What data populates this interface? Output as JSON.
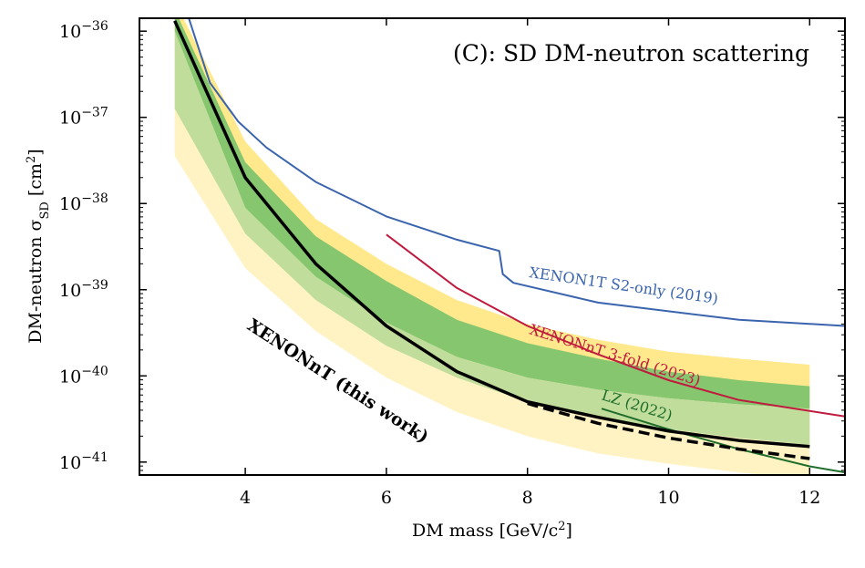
{
  "chart_data": {
    "type": "line",
    "title": "(C): SD DM-neutron scattering",
    "xlabel": {
      "main": "DM mass [GeV/c",
      "sup": "2",
      "end": "]"
    },
    "ylabel": {
      "main": "DM-neutron σ",
      "sub": "SD",
      "unit": " [cm",
      "sup": "2",
      "end": "]"
    },
    "xlim": [
      2.5,
      12.5
    ],
    "ylim_log10": [
      -41.15,
      -35.85
    ],
    "xscale": "linear",
    "yscale": "log",
    "xticks": [
      4,
      6,
      8,
      10,
      12
    ],
    "xtick_labels": [
      "4",
      "6",
      "8",
      "10",
      "12"
    ],
    "yticks_log10": [
      -36,
      -37,
      -38,
      -39,
      -40,
      -41
    ],
    "ytick_labels": [
      {
        "base": "10",
        "exp": "−36"
      },
      {
        "base": "10",
        "exp": "−37"
      },
      {
        "base": "10",
        "exp": "−38"
      },
      {
        "base": "10",
        "exp": "−39"
      },
      {
        "base": "10",
        "exp": "−40"
      },
      {
        "base": "10",
        "exp": "−41"
      }
    ],
    "colors": {
      "band2": "#fff3c4",
      "band2_alt": "#ffe98c",
      "band1": "#c0dd9c",
      "band1_alt": "#86c66f",
      "xenon1t": "#3a64ad",
      "xenonnt3fold": "#c01a3e",
      "lz": "#1f6d2b",
      "this_work": "#000000"
    },
    "bands": {
      "x": [
        3,
        4,
        5,
        6,
        7,
        8,
        9,
        10,
        11,
        12
      ],
      "outer_upper": [
        -35.65,
        -37.28,
        -38.18,
        -38.7,
        -39.12,
        -39.4,
        -39.58,
        -39.72,
        -39.8,
        -39.87
      ],
      "inner_upper": [
        -35.75,
        -37.52,
        -38.38,
        -38.9,
        -39.35,
        -39.62,
        -39.8,
        -39.95,
        -40.05,
        -40.12
      ],
      "median": [
        -36.0,
        -38.05,
        -38.85,
        -39.38,
        -39.78,
        -40.02,
        -40.16,
        -40.26,
        -40.33,
        -40.38
      ],
      "inner_lower": [
        -36.9,
        -38.35,
        -39.12,
        -39.65,
        -40.02,
        -40.3,
        -40.48,
        -40.62,
        -40.72,
        -40.8
      ],
      "outer_lower": [
        -37.45,
        -38.75,
        -39.48,
        -40.02,
        -40.42,
        -40.7,
        -40.9,
        -41.02,
        -41.12,
        -41.2
      ]
    },
    "series": [
      {
        "name": "XENONnT (this work)",
        "color": "#000000",
        "style": "solid",
        "x": [
          3,
          4,
          5,
          6,
          7,
          8,
          9,
          10,
          11,
          12
        ],
        "y_log10": [
          -35.88,
          -37.7,
          -38.7,
          -39.42,
          -39.95,
          -40.3,
          -40.48,
          -40.64,
          -40.75,
          -40.82
        ]
      },
      {
        "name": "XENONnT (this work) - dashed",
        "color": "#000000",
        "style": "dashed",
        "x": [
          8,
          9,
          10,
          11,
          12
        ],
        "y_log10": [
          -40.32,
          -40.55,
          -40.72,
          -40.85,
          -40.96
        ]
      },
      {
        "name": "XENON1T S2-only (2019)",
        "color": "#3a64ad",
        "style": "solid",
        "x": [
          3.1,
          3.5,
          3.9,
          4.3,
          5.0,
          6.0,
          7.0,
          7.6,
          7.65,
          7.8,
          9.0,
          11.0,
          12.5
        ],
        "y_log10": [
          -35.6,
          -36.6,
          -37.05,
          -37.35,
          -37.75,
          -38.15,
          -38.42,
          -38.55,
          -38.82,
          -38.92,
          -39.15,
          -39.35,
          -39.42
        ]
      },
      {
        "name": "XENONnT 3-fold (2023)",
        "color": "#c01a3e",
        "style": "solid",
        "x": [
          6.0,
          7.0,
          8.0,
          9.0,
          10.0,
          11.0,
          12.5
        ],
        "y_log10": [
          -38.36,
          -38.98,
          -39.42,
          -39.75,
          -40.05,
          -40.28,
          -40.47
        ]
      },
      {
        "name": "LZ (2022)",
        "color": "#1f6d2b",
        "style": "solid",
        "x": [
          9.05,
          10.0,
          11.0,
          12.0,
          12.5
        ],
        "y_log10": [
          -40.38,
          -40.62,
          -40.85,
          -41.05,
          -41.12
        ]
      }
    ],
    "annotations": [
      {
        "text": "XENON1T S2-only (2019)",
        "color": "#3a64ad"
      },
      {
        "text": "XENONnT 3-fold (2023)",
        "color": "#c01a3e"
      },
      {
        "text": "LZ (2022)",
        "color": "#1f6d2b"
      },
      {
        "text": "XENONnT (this work)",
        "color": "#000000"
      }
    ]
  }
}
